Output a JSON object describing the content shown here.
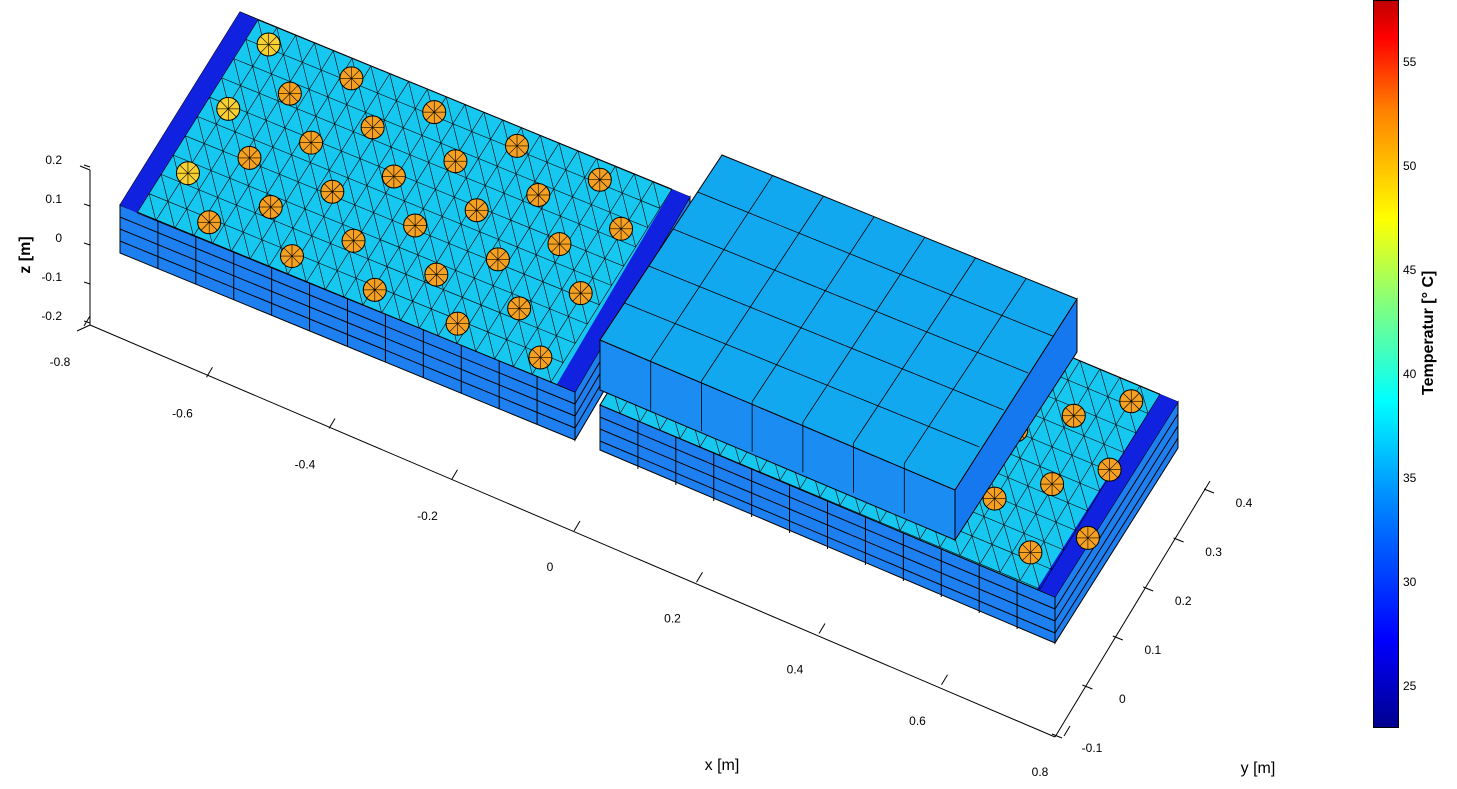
{
  "chart_data": {
    "type": "3d-surface-mesh",
    "xlabel": "x [m]",
    "ylabel": "y [m]",
    "zlabel": "z [m]",
    "x_ticks": [
      "-0.8",
      "-0.6",
      "-0.4",
      "-0.2",
      "0",
      "0.2",
      "0.4",
      "0.6",
      "0.8"
    ],
    "y_ticks": [
      "-0.1",
      "0",
      "0.1",
      "0.2",
      "0.3",
      "0.4"
    ],
    "z_ticks": [
      "0.2",
      "0.1",
      "0",
      "-0.1",
      "-0.2"
    ],
    "xlim": [
      -0.8,
      0.8
    ],
    "ylim": [
      -0.1,
      0.4
    ],
    "zlim": [
      -0.2,
      0.2
    ],
    "colorbar": {
      "label": "Temperatur [° C]",
      "range": [
        23,
        58
      ],
      "ticks": [
        "55",
        "50",
        "45",
        "40",
        "35",
        "30",
        "25"
      ],
      "colormap": "jet"
    },
    "colors": {
      "mesh_surface": "#16c8f0",
      "hot_spots": "#f5a020",
      "hot_spots_warm": "#f8d030",
      "edge_strip": "#1022e0",
      "box_face": "#12a8f0",
      "side_walls": "#1e80f0"
    }
  }
}
